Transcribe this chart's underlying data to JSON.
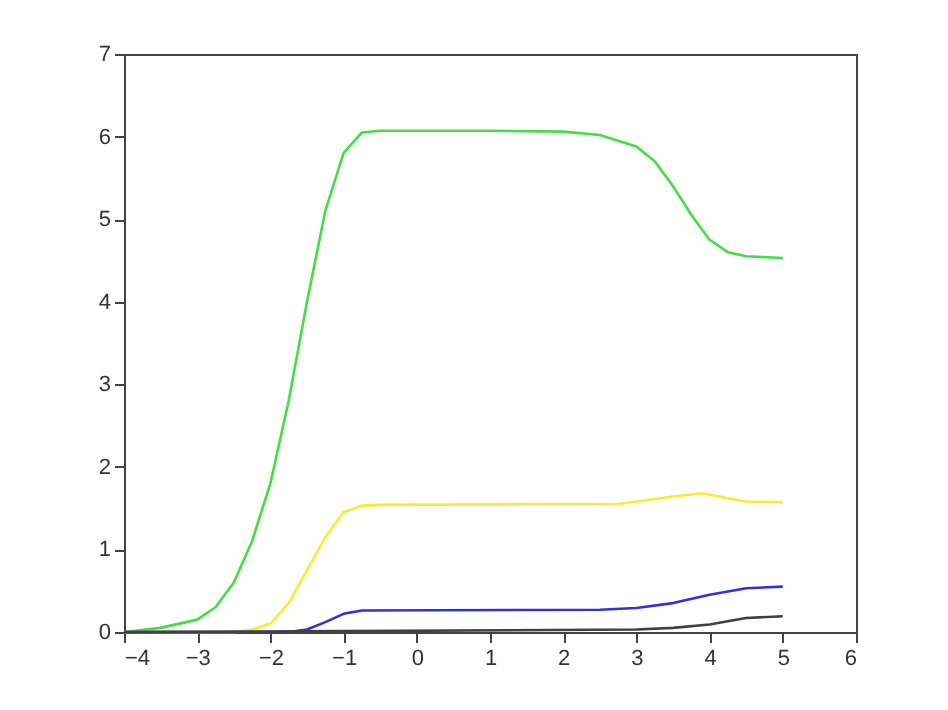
{
  "chart_data": {
    "type": "line",
    "xlim": [
      -4,
      6
    ],
    "ylim": [
      0,
      7
    ],
    "xticks": [
      -4,
      -3,
      -2,
      -1,
      0,
      1,
      2,
      3,
      4,
      5,
      6
    ],
    "yticks": [
      0,
      1,
      2,
      3,
      4,
      5,
      6,
      7
    ],
    "grid": false,
    "legend": false,
    "marker": "none",
    "line_style": "solid",
    "series": [
      {
        "color": "#44dd44",
        "x": [
          -4,
          -3.5,
          -3,
          -2.75,
          -2.5,
          -2.25,
          -2,
          -1.75,
          -1.5,
          -1.25,
          -1,
          -0.75,
          -0.5,
          0,
          1,
          2,
          2.5,
          3,
          3.25,
          3.5,
          3.75,
          4,
          4.25,
          4.5,
          5
        ],
        "values": [
          0,
          0.05,
          0.15,
          0.3,
          0.6,
          1.1,
          1.8,
          2.8,
          4.0,
          5.1,
          5.8,
          6.05,
          6.07,
          6.07,
          6.07,
          6.06,
          6.02,
          5.88,
          5.7,
          5.4,
          5.05,
          4.75,
          4.6,
          4.55,
          4.53
        ]
      },
      {
        "color": "#f2ee30",
        "x": [
          -4,
          -2.5,
          -2.25,
          -2,
          -1.75,
          -1.5,
          -1.25,
          -1,
          -0.75,
          -0.5,
          2.75,
          3,
          3.5,
          3.9,
          4.25,
          4.5,
          5
        ],
        "values": [
          0,
          0,
          0.03,
          0.1,
          0.35,
          0.75,
          1.15,
          1.45,
          1.53,
          1.54,
          1.55,
          1.58,
          1.64,
          1.68,
          1.62,
          1.58,
          1.57
        ]
      },
      {
        "color": "#3030dd",
        "x": [
          -4,
          -1.75,
          -1.5,
          -1.25,
          -1,
          -0.75,
          2.5,
          3,
          3.5,
          4,
          4.5,
          5
        ],
        "values": [
          0,
          0,
          0.03,
          0.12,
          0.22,
          0.26,
          0.27,
          0.29,
          0.35,
          0.45,
          0.53,
          0.55
        ]
      },
      {
        "color": "#404040",
        "x": [
          -4,
          -1,
          3,
          3.5,
          4,
          4.5,
          5
        ],
        "values": [
          0,
          0.01,
          0.03,
          0.05,
          0.09,
          0.17,
          0.19
        ]
      }
    ]
  }
}
